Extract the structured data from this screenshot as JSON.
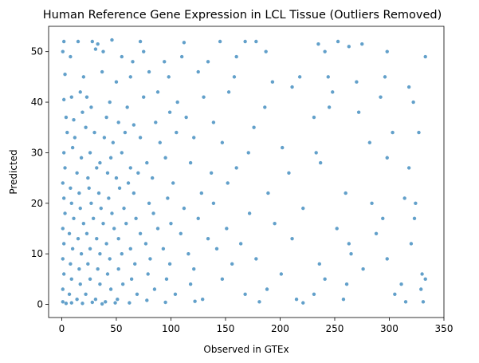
{
  "chart_data": {
    "type": "scatter",
    "title": "Human Reference Gene Expression in LCL Tissue (Outliers Removed)",
    "xlabel": "Observed in GTEx",
    "ylabel": "Predicted",
    "xlim": [
      -12,
      350
    ],
    "ylim": [
      -2.6,
      55
    ],
    "xticks": [
      0,
      50,
      100,
      150,
      200,
      250,
      300,
      350
    ],
    "yticks": [
      0,
      10,
      20,
      30,
      40,
      50
    ],
    "grid": false,
    "legend": "none",
    "point_color": "#1f77b4",
    "point_opacity": 0.7,
    "series": [
      {
        "points": [
          [
            2,
            52
          ],
          [
            15,
            52
          ],
          [
            28,
            52
          ],
          [
            33,
            51.5
          ],
          [
            46,
            52.3
          ],
          [
            72,
            52
          ],
          [
            112,
            51.8
          ],
          [
            145,
            52
          ],
          [
            168,
            52
          ],
          [
            178,
            52
          ],
          [
            235,
            51.5
          ],
          [
            253,
            52
          ],
          [
            263,
            51
          ],
          [
            275,
            51.5
          ],
          [
            1,
            50
          ],
          [
            8,
            49
          ],
          [
            31,
            50.5
          ],
          [
            38,
            50
          ],
          [
            55,
            49
          ],
          [
            65,
            48
          ],
          [
            75,
            50
          ],
          [
            94,
            48
          ],
          [
            110,
            49
          ],
          [
            134,
            48
          ],
          [
            160,
            49
          ],
          [
            187,
            50
          ],
          [
            241,
            50
          ],
          [
            298,
            50
          ],
          [
            333,
            49
          ],
          [
            3,
            45.5
          ],
          [
            20,
            45
          ],
          [
            37,
            46
          ],
          [
            50,
            44
          ],
          [
            63,
            45
          ],
          [
            80,
            46
          ],
          [
            98,
            45
          ],
          [
            125,
            46
          ],
          [
            158,
            45
          ],
          [
            193,
            44
          ],
          [
            218,
            45
          ],
          [
            244,
            45
          ],
          [
            270,
            44
          ],
          [
            296,
            45
          ],
          [
            318,
            43
          ],
          [
            2,
            40.5
          ],
          [
            9,
            41
          ],
          [
            17,
            42
          ],
          [
            23,
            41
          ],
          [
            44,
            40
          ],
          [
            60,
            39
          ],
          [
            75,
            41
          ],
          [
            88,
            42
          ],
          [
            106,
            40
          ],
          [
            130,
            41
          ],
          [
            153,
            42
          ],
          [
            186,
            39
          ],
          [
            211,
            43
          ],
          [
            248,
            42
          ],
          [
            292,
            41
          ],
          [
            322,
            40
          ],
          [
            4,
            37
          ],
          [
            11,
            36.5
          ],
          [
            19,
            38
          ],
          [
            27,
            39
          ],
          [
            41,
            37
          ],
          [
            52,
            36
          ],
          [
            66,
            35.5
          ],
          [
            86,
            36
          ],
          [
            99,
            38
          ],
          [
            114,
            37
          ],
          [
            139,
            36
          ],
          [
            176,
            35
          ],
          [
            231,
            37
          ],
          [
            245,
            39
          ],
          [
            272,
            38
          ],
          [
            303,
            34
          ],
          [
            327,
            34
          ],
          [
            5,
            34
          ],
          [
            12,
            33
          ],
          [
            22,
            35
          ],
          [
            30,
            34
          ],
          [
            39,
            33
          ],
          [
            47,
            32
          ],
          [
            58,
            34
          ],
          [
            72,
            33
          ],
          [
            90,
            32
          ],
          [
            105,
            34
          ],
          [
            121,
            33
          ],
          [
            147,
            32
          ],
          [
            171,
            30
          ],
          [
            202,
            31
          ],
          [
            233,
            30
          ],
          [
            282,
            32
          ],
          [
            298,
            29
          ],
          [
            2,
            30
          ],
          [
            10,
            31
          ],
          [
            18,
            29
          ],
          [
            26,
            30
          ],
          [
            35,
            28
          ],
          [
            45,
            29
          ],
          [
            55,
            30
          ],
          [
            63,
            27
          ],
          [
            78,
            28
          ],
          [
            95,
            29
          ],
          [
            118,
            28
          ],
          [
            137,
            26
          ],
          [
            160,
            27
          ],
          [
            208,
            26
          ],
          [
            237,
            28
          ],
          [
            318,
            27
          ],
          [
            3,
            27
          ],
          [
            14,
            26
          ],
          [
            24,
            25
          ],
          [
            32,
            27
          ],
          [
            42,
            26
          ],
          [
            50,
            25
          ],
          [
            61,
            24
          ],
          [
            70,
            26
          ],
          [
            83,
            25
          ],
          [
            102,
            24
          ],
          [
            128,
            22
          ],
          [
            152,
            24
          ],
          [
            189,
            22
          ],
          [
            260,
            22
          ],
          [
            284,
            20
          ],
          [
            1,
            24
          ],
          [
            8,
            23
          ],
          [
            16,
            22
          ],
          [
            25,
            23
          ],
          [
            34,
            22
          ],
          [
            43,
            21
          ],
          [
            53,
            23
          ],
          [
            66,
            22
          ],
          [
            80,
            20
          ],
          [
            97,
            21
          ],
          [
            112,
            19
          ],
          [
            139,
            20
          ],
          [
            172,
            18
          ],
          [
            221,
            19
          ],
          [
            314,
            21
          ],
          [
            324,
            20
          ],
          [
            2,
            21
          ],
          [
            9,
            20
          ],
          [
            17,
            19
          ],
          [
            27,
            20
          ],
          [
            36,
            19
          ],
          [
            46,
            18
          ],
          [
            57,
            19
          ],
          [
            68,
            17
          ],
          [
            84,
            18
          ],
          [
            100,
            16
          ],
          [
            125,
            17
          ],
          [
            151,
            15
          ],
          [
            195,
            16
          ],
          [
            252,
            15
          ],
          [
            294,
            17
          ],
          [
            323,
            17
          ],
          [
            3,
            18
          ],
          [
            11,
            17
          ],
          [
            20,
            16
          ],
          [
            29,
            17
          ],
          [
            38,
            16
          ],
          [
            48,
            15
          ],
          [
            59,
            16
          ],
          [
            72,
            14
          ],
          [
            88,
            15
          ],
          [
            109,
            14
          ],
          [
            134,
            13
          ],
          [
            164,
            12
          ],
          [
            211,
            13
          ],
          [
            263,
            12
          ],
          [
            288,
            14
          ],
          [
            320,
            12
          ],
          [
            1,
            15
          ],
          [
            7,
            14
          ],
          [
            15,
            13
          ],
          [
            23,
            14
          ],
          [
            32,
            13
          ],
          [
            41,
            12
          ],
          [
            52,
            13
          ],
          [
            63,
            11
          ],
          [
            77,
            12
          ],
          [
            93,
            11
          ],
          [
            116,
            10
          ],
          [
            142,
            11
          ],
          [
            178,
            9
          ],
          [
            236,
            8
          ],
          [
            265,
            10
          ],
          [
            298,
            9
          ],
          [
            330,
            6
          ],
          [
            2,
            12
          ],
          [
            10,
            11
          ],
          [
            18,
            10
          ],
          [
            26,
            11
          ],
          [
            35,
            10
          ],
          [
            44,
            9
          ],
          [
            55,
            10
          ],
          [
            67,
            8
          ],
          [
            81,
            9
          ],
          [
            99,
            8
          ],
          [
            121,
            7
          ],
          [
            156,
            8
          ],
          [
            201,
            6
          ],
          [
            241,
            5
          ],
          [
            276,
            7
          ],
          [
            311,
            4
          ],
          [
            333,
            5
          ],
          [
            1,
            9
          ],
          [
            8,
            8
          ],
          [
            16,
            7
          ],
          [
            24,
            8
          ],
          [
            33,
            7
          ],
          [
            42,
            6
          ],
          [
            52,
            7
          ],
          [
            64,
            5
          ],
          [
            79,
            6
          ],
          [
            96,
            5
          ],
          [
            118,
            4
          ],
          [
            147,
            5
          ],
          [
            188,
            3
          ],
          [
            231,
            2
          ],
          [
            261,
            4
          ],
          [
            305,
            2
          ],
          [
            329,
            3
          ],
          [
            2,
            6
          ],
          [
            9,
            5
          ],
          [
            17,
            4
          ],
          [
            26,
            5
          ],
          [
            35,
            4
          ],
          [
            45,
            3
          ],
          [
            56,
            4
          ],
          [
            69,
            2
          ],
          [
            85,
            3
          ],
          [
            104,
            2
          ],
          [
            129,
            1
          ],
          [
            168,
            2
          ],
          [
            215,
            1
          ],
          [
            258,
            1
          ],
          [
            315,
            0.5
          ],
          [
            331,
            0.5
          ],
          [
            1,
            3
          ],
          [
            7,
            2
          ],
          [
            14,
            1
          ],
          [
            22,
            2
          ],
          [
            31,
            1
          ],
          [
            40,
            0.5
          ],
          [
            51,
            1
          ],
          [
            62,
            0.3
          ],
          [
            78,
            0.8
          ],
          [
            95,
            0.4
          ],
          [
            122,
            0.6
          ],
          [
            181,
            0.5
          ],
          [
            221,
            0.3
          ],
          [
            1,
            0.5
          ],
          [
            4,
            0.2
          ],
          [
            9,
            0.3
          ],
          [
            19,
            0.2
          ],
          [
            28,
            0.4
          ],
          [
            37,
            0.1
          ],
          [
            49,
            0.3
          ]
        ]
      }
    ]
  }
}
